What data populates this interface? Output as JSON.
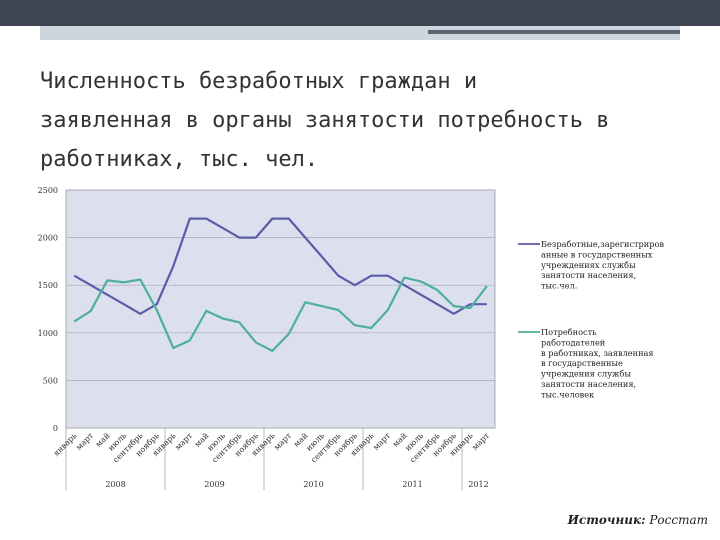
{
  "slide": {
    "title_lines": [
      "Численность безработных граждан и",
      "заявленная в органы занятости потребность в",
      "работниках, тыс. чел."
    ],
    "source_label": "Источник:",
    "source_value": "Росстат"
  },
  "colors": {
    "topbar": "#3f4452",
    "plot_bg": "#dcdfee",
    "series1": "#5b5ca8",
    "series2": "#4faf9c"
  },
  "chart_data": {
    "type": "line",
    "title": "",
    "ylim": [
      0,
      2500
    ],
    "yticks": [
      0,
      500,
      1000,
      1500,
      2000,
      2500
    ],
    "grid": true,
    "legend_position": "right",
    "categories": [
      "январь",
      "март",
      "май",
      "июль",
      "сентябрь",
      "ноябрь",
      "январь",
      "март",
      "май",
      "июль",
      "сентябрь",
      "ноябрь",
      "январь",
      "март",
      "май",
      "июль",
      "сентябрь",
      "ноябрь",
      "январь",
      "март",
      "май",
      "июль",
      "сентябрь",
      "ноябрь",
      "январь",
      "март"
    ],
    "years": [
      {
        "label": "2008",
        "start": 0,
        "count": 6
      },
      {
        "label": "2009",
        "start": 6,
        "count": 6
      },
      {
        "label": "2010",
        "start": 12,
        "count": 6
      },
      {
        "label": "2011",
        "start": 18,
        "count": 6
      },
      {
        "label": "2012",
        "start": 24,
        "count": 2
      }
    ],
    "series": [
      {
        "name": "Безработные,зарегистрированные в государственных учреждениях службы занятости населения, тыс.чел.",
        "legend_lines": [
          "Безработные,зарегистриров",
          "анные в государственных",
          "учреждениях службы",
          "занятости населения,",
          "тыс.чел."
        ],
        "values": [
          1600,
          1500,
          1400,
          1300,
          1200,
          1300,
          1700,
          2200,
          2200,
          2100,
          2000,
          2000,
          2200,
          2200,
          2000,
          1800,
          1600,
          1500,
          1600,
          1600,
          1500,
          1400,
          1300,
          1200,
          1300,
          1300
        ]
      },
      {
        "name": "Потребность работодателей в работниках, заявленная в государственные учреждения службы занятости населения, тыс.человек",
        "legend_lines": [
          "Потребность",
          "работодателей",
          "в работниках, заявленная",
          "в государственные",
          "учреждения службы",
          "занятости населения,",
          "тыс.человек"
        ],
        "values": [
          1120,
          1230,
          1550,
          1530,
          1560,
          1240,
          840,
          920,
          1230,
          1150,
          1110,
          900,
          810,
          990,
          1320,
          1280,
          1240,
          1080,
          1050,
          1240,
          1580,
          1540,
          1450,
          1280,
          1260,
          1490
        ]
      }
    ]
  }
}
